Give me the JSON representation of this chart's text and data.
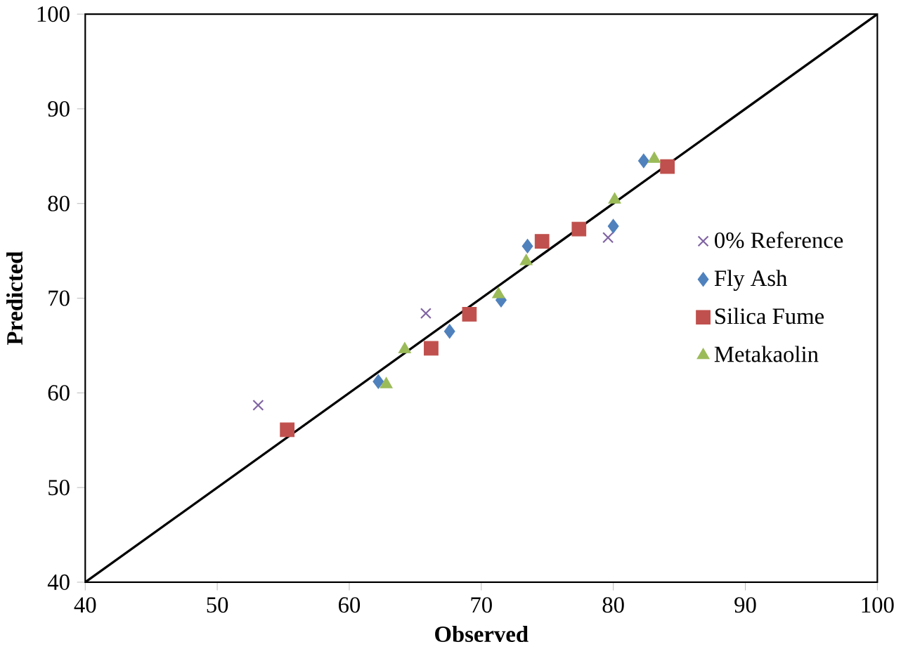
{
  "chart_data": {
    "type": "scatter",
    "xlabel": "Observed",
    "ylabel": "Predicted",
    "xlim": [
      40,
      100
    ],
    "ylim": [
      40,
      100
    ],
    "xticks": [
      40,
      50,
      60,
      70,
      80,
      90,
      100
    ],
    "yticks": [
      40,
      50,
      60,
      70,
      80,
      90,
      100
    ],
    "legend": "right",
    "series": [
      {
        "type": "line",
        "x": [
          40,
          100
        ],
        "values": [
          40,
          100
        ],
        "color": "#000000",
        "marker": "none",
        "line_style": "solid"
      },
      {
        "name": "0% Reference",
        "marker": "cross",
        "color": "#8064a2",
        "x": [
          53.1,
          65.8,
          79.6
        ],
        "values": [
          58.7,
          68.4,
          76.4
        ]
      },
      {
        "name": "Fly Ash",
        "marker": "diamond",
        "color": "#4f81bd",
        "x": [
          62.2,
          67.6,
          71.5,
          73.5,
          80.0,
          82.3
        ],
        "values": [
          61.2,
          66.5,
          69.8,
          75.5,
          77.6,
          84.5
        ]
      },
      {
        "name": "Silica Fume",
        "marker": "square",
        "color": "#c0504d",
        "x": [
          55.3,
          66.2,
          69.1,
          74.6,
          77.4,
          84.1
        ],
        "values": [
          56.1,
          64.7,
          68.3,
          76.0,
          77.3,
          83.9
        ]
      },
      {
        "name": "Metakaolin",
        "marker": "triangle",
        "color": "#9bbb59",
        "x": [
          62.8,
          64.2,
          71.3,
          73.4,
          80.1,
          83.1
        ],
        "values": [
          60.9,
          64.6,
          70.4,
          73.9,
          80.4,
          84.7
        ]
      }
    ]
  }
}
